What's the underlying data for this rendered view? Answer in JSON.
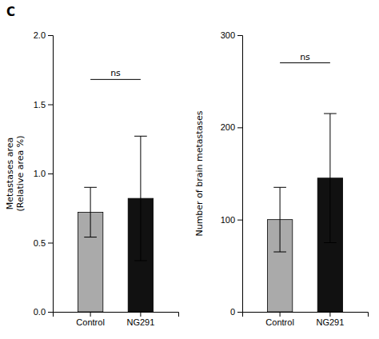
{
  "chart_data": [
    {
      "type": "bar",
      "categories": [
        "Control",
        "NG291"
      ],
      "values": [
        0.72,
        0.82
      ],
      "errors": [
        0.18,
        0.45
      ],
      "colors": [
        "#aaaaaa",
        "#111111"
      ],
      "ylabel": "Metastases area\n(Relative area %)",
      "ylim": [
        0,
        2.0
      ],
      "yticks": [
        {
          "value": 0,
          "label": "0.0"
        },
        0.5,
        {
          "value": 1,
          "label": "1.0"
        },
        1.5,
        {
          "value": 2,
          "label": "2.0"
        }
      ],
      "annotations": [
        {
          "text": "C"
        },
        {
          "text": "ns",
          "from": "Control",
          "to": "NG291",
          "y": 1.68
        }
      ]
    },
    {
      "type": "bar",
      "categories": [
        "Control",
        "NG291"
      ],
      "values": [
        100,
        145
      ],
      "errors": [
        35,
        70
      ],
      "colors": [
        "#aaaaaa",
        "#111111"
      ],
      "ylabel": "Number of brain metastases",
      "ylim": [
        0,
        300
      ],
      "yticks": [
        0,
        100,
        200,
        300
      ],
      "annotations": [
        {
          "text": "ns",
          "from": "Control",
          "to": "NG291",
          "y": 270
        }
      ]
    }
  ]
}
